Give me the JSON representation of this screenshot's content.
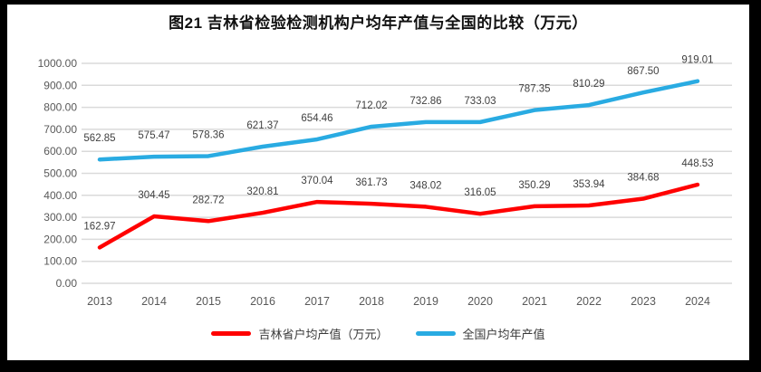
{
  "title": "图21 吉林省检验检测机构户均年产值与全国的比较（万元）",
  "chart_data": {
    "type": "line",
    "title": "图21 吉林省检验检测机构户均年产值与全国的比较（万元）",
    "categories": [
      "2013",
      "2014",
      "2015",
      "2016",
      "2017",
      "2018",
      "2019",
      "2020",
      "2021",
      "2022",
      "2023",
      "2024"
    ],
    "series": [
      {
        "name": "吉林省户均产值（万元）",
        "color": "#FF0000",
        "values": [
          162.97,
          304.45,
          282.72,
          320.81,
          370.04,
          361.73,
          348.02,
          316.05,
          350.29,
          353.94,
          384.68,
          448.53
        ]
      },
      {
        "name": "全国户均年产值",
        "color": "#29ABE2",
        "values": [
          562.85,
          575.47,
          578.36,
          621.37,
          654.46,
          712.02,
          732.86,
          733.03,
          787.35,
          810.29,
          867.5,
          919.01
        ]
      }
    ],
    "ylim": [
      0,
      1000
    ],
    "ytick_step": 100,
    "value_decimals": 2,
    "grid": "horizontal",
    "data_labels": "above-points",
    "legend_position": "bottom",
    "colors": {
      "gridline": "#DADADA",
      "axis_text": "#595959",
      "data_label_text": "#404040",
      "frame_border": "#000000",
      "background": "#FFFFFF"
    }
  }
}
